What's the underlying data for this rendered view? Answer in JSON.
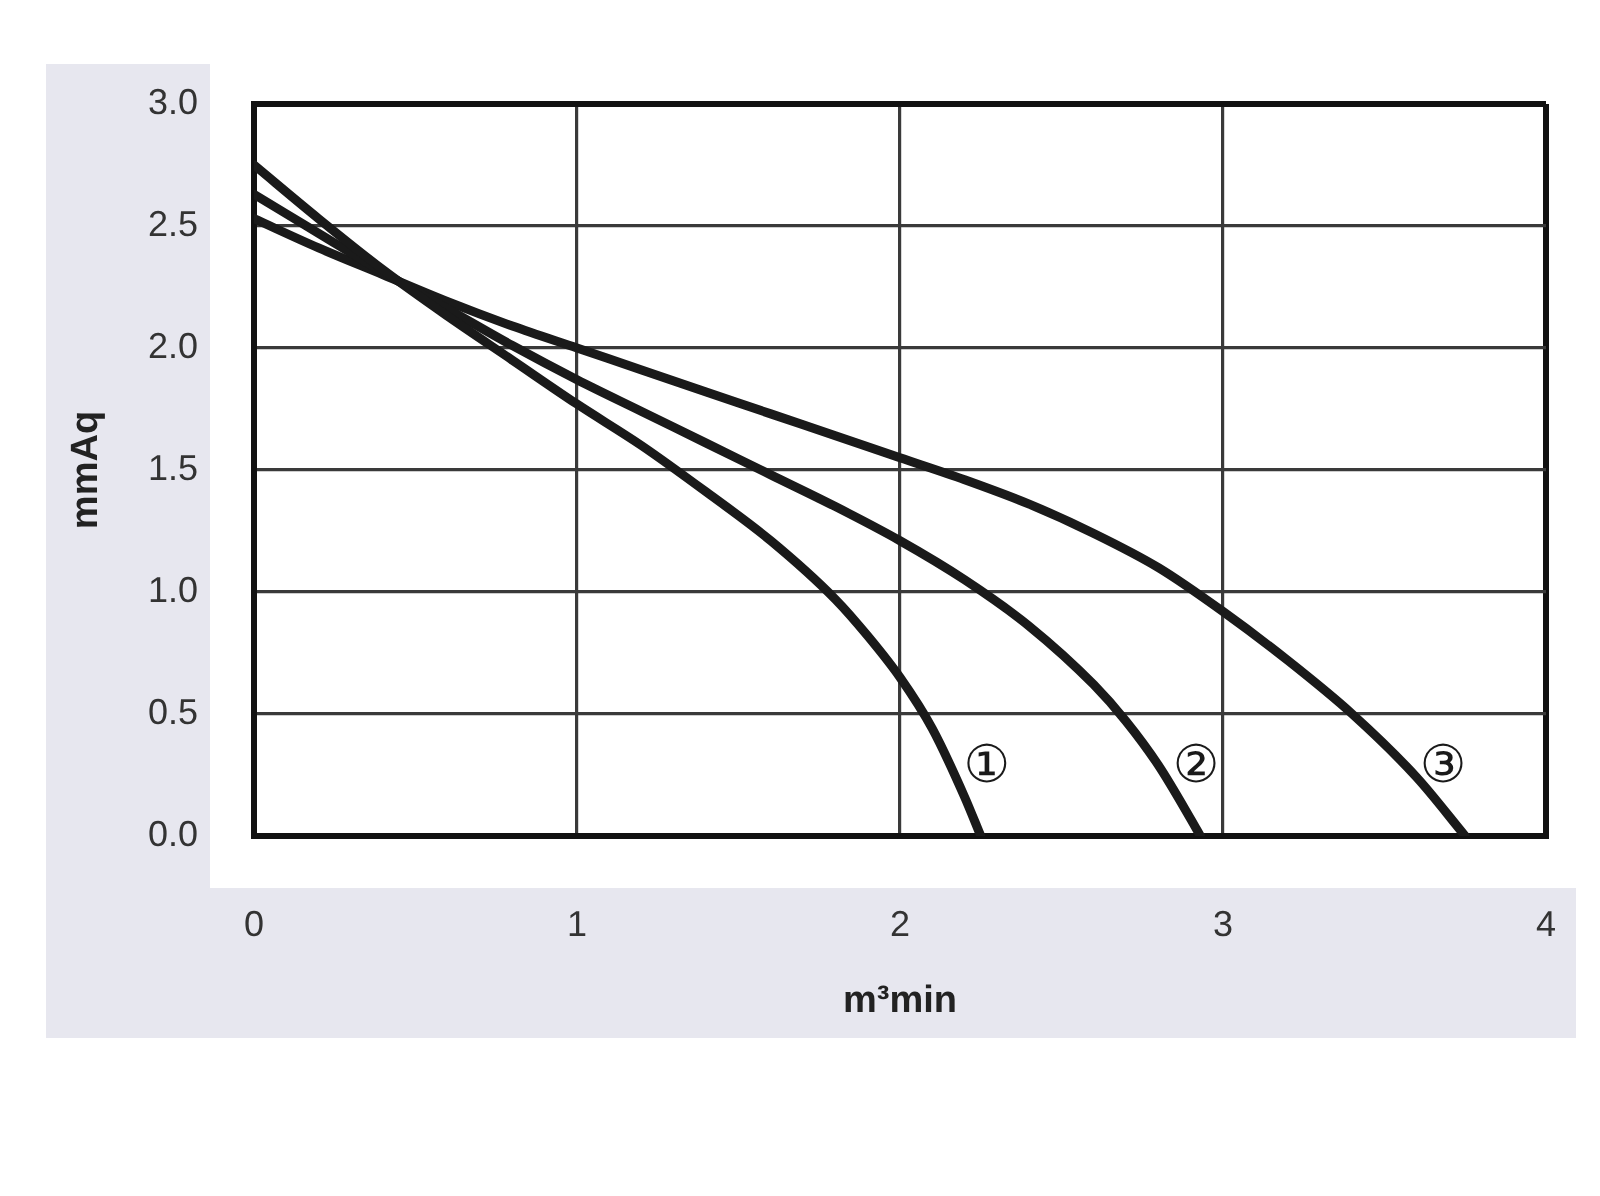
{
  "chart_data": {
    "type": "line",
    "xlabel": "m³min",
    "ylabel": "mmAq",
    "xlim": [
      0,
      4
    ],
    "ylim": [
      0,
      3
    ],
    "xticks": [
      0,
      1,
      2,
      3,
      4
    ],
    "yticks": [
      {
        "value": 0,
        "label": "0.0"
      },
      0.5,
      {
        "value": 1,
        "label": "1.0"
      },
      1.5,
      {
        "value": 2,
        "label": "2.0"
      },
      2.5,
      {
        "value": 3,
        "label": "3.0"
      }
    ],
    "grid": true,
    "legend": false,
    "marker": "none",
    "line_style": "solid",
    "series": [
      {
        "name": "①",
        "color": "#1a1a1a",
        "x": [
          0,
          0.2,
          0.4,
          0.6,
          0.8,
          1.0,
          1.2,
          1.4,
          1.6,
          1.8,
          1.9,
          2.0,
          2.1,
          2.2,
          2.25
        ],
        "values": [
          2.75,
          2.53,
          2.32,
          2.13,
          1.95,
          1.77,
          1.6,
          1.41,
          1.21,
          0.97,
          0.82,
          0.65,
          0.44,
          0.16,
          0
        ]
      },
      {
        "name": "②",
        "color": "#1a1a1a",
        "x": [
          0,
          0.2,
          0.4,
          0.6,
          0.8,
          1.0,
          1.2,
          1.4,
          1.6,
          1.8,
          2.0,
          2.2,
          2.4,
          2.6,
          2.7,
          2.8,
          2.9,
          2.93
        ],
        "values": [
          2.63,
          2.47,
          2.31,
          2.16,
          2.01,
          1.87,
          1.74,
          1.61,
          1.48,
          1.35,
          1.21,
          1.05,
          0.86,
          0.62,
          0.47,
          0.29,
          0.07,
          0
        ]
      },
      {
        "name": "③",
        "color": "#1a1a1a",
        "x": [
          0,
          0.2,
          0.4,
          0.6,
          0.8,
          1.0,
          1.2,
          1.4,
          1.6,
          1.8,
          2.0,
          2.2,
          2.4,
          2.6,
          2.8,
          3.0,
          3.2,
          3.4,
          3.6,
          3.75
        ],
        "values": [
          2.53,
          2.41,
          2.3,
          2.19,
          2.09,
          2.0,
          1.91,
          1.82,
          1.73,
          1.64,
          1.55,
          1.46,
          1.36,
          1.24,
          1.1,
          0.92,
          0.72,
          0.5,
          0.24,
          0
        ]
      }
    ]
  }
}
